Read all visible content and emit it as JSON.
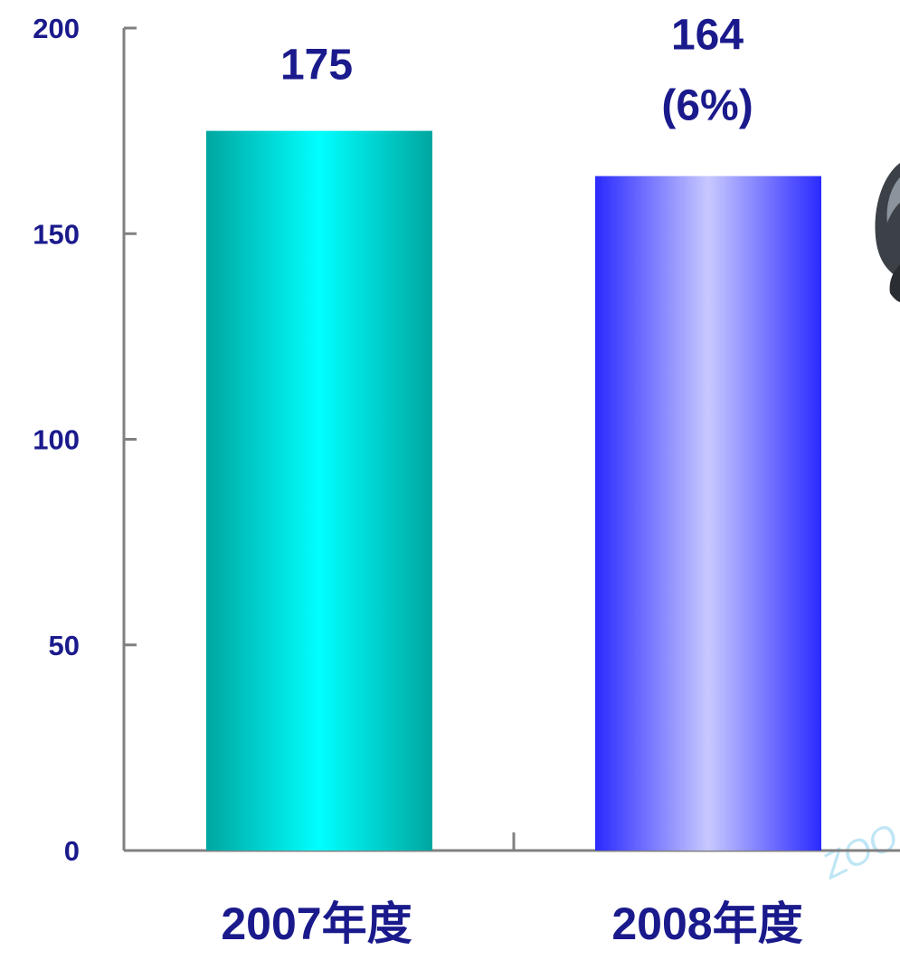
{
  "colors": {
    "text": "#1A1A8C",
    "axis": "#808080",
    "bar_2007": "#00A6A0",
    "bar_2007_highlight": "#00FFFF",
    "bar_2008": "#2A2AFF",
    "bar_2008_highlight": "#C8C8FF",
    "watermark": "#BFE6F5"
  },
  "decor": {
    "partial_image_icon": "helmet-icon",
    "watermark_text": "ZOO"
  },
  "chart_data": {
    "type": "bar",
    "title": "",
    "xlabel": "",
    "ylabel": "",
    "ylim": [
      0,
      200
    ],
    "yticks": [
      "0",
      "50",
      "100",
      "150",
      "200"
    ],
    "categories": [
      "2007年度",
      "2008年度"
    ],
    "values": [
      175,
      164
    ],
    "data_labels": [
      {
        "line1": "175",
        "line2": ""
      },
      {
        "line1": "164",
        "line2": "(6%)"
      }
    ],
    "grid": false,
    "legend": "none"
  }
}
